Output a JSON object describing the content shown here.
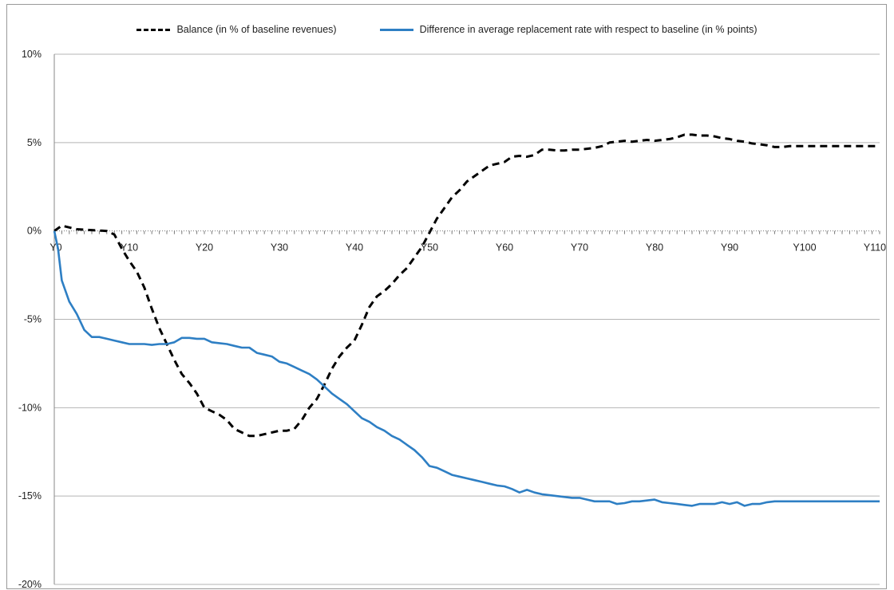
{
  "chart_data": {
    "type": "line",
    "title": "",
    "xlabel": "",
    "ylabel": "",
    "ylim": [
      -20,
      10
    ],
    "xlim": [
      0,
      110
    ],
    "yticks": [
      "10%",
      "5%",
      "0%",
      "-5%",
      "-10%",
      "-15%",
      "-20%"
    ],
    "ytick_values": [
      10,
      5,
      0,
      -5,
      -10,
      -15,
      -20
    ],
    "xticks": [
      "Y0",
      "Y10",
      "Y20",
      "Y30",
      "Y40",
      "Y50",
      "Y60",
      "Y70",
      "Y80",
      "Y90",
      "Y100",
      "Y110"
    ],
    "xtick_values": [
      0,
      10,
      20,
      30,
      40,
      50,
      60,
      70,
      80,
      90,
      100,
      110
    ],
    "grid": true,
    "legend_position": "top",
    "series": [
      {
        "name": "Balance (in % of baseline revenues)",
        "style": "dashed",
        "color": "#000000",
        "points": [
          [
            0,
            0
          ],
          [
            1,
            0.3
          ],
          [
            3,
            0.1
          ],
          [
            5,
            0.05
          ],
          [
            7,
            0.0
          ],
          [
            8,
            -0.2
          ],
          [
            9,
            -1.0
          ],
          [
            10,
            -1.7
          ],
          [
            11,
            -2.3
          ],
          [
            12,
            -3.2
          ],
          [
            13,
            -4.4
          ],
          [
            14,
            -5.5
          ],
          [
            15,
            -6.4
          ],
          [
            16,
            -7.3
          ],
          [
            17,
            -8.1
          ],
          [
            18,
            -8.6
          ],
          [
            19,
            -9.2
          ],
          [
            20,
            -10.0
          ],
          [
            21,
            -10.2
          ],
          [
            22,
            -10.4
          ],
          [
            23,
            -10.7
          ],
          [
            24,
            -11.2
          ],
          [
            25,
            -11.4
          ],
          [
            26,
            -11.6
          ],
          [
            27,
            -11.6
          ],
          [
            28,
            -11.5
          ],
          [
            29,
            -11.4
          ],
          [
            30,
            -11.3
          ],
          [
            31,
            -11.3
          ],
          [
            32,
            -11.2
          ],
          [
            33,
            -10.7
          ],
          [
            34,
            -10.0
          ],
          [
            35,
            -9.5
          ],
          [
            36,
            -8.7
          ],
          [
            37,
            -7.8
          ],
          [
            38,
            -7.1
          ],
          [
            39,
            -6.6
          ],
          [
            40,
            -6.2
          ],
          [
            41,
            -5.3
          ],
          [
            42,
            -4.3
          ],
          [
            43,
            -3.7
          ],
          [
            44,
            -3.4
          ],
          [
            45,
            -3.0
          ],
          [
            46,
            -2.5
          ],
          [
            47,
            -2.1
          ],
          [
            48,
            -1.5
          ],
          [
            49,
            -0.9
          ],
          [
            50,
            -0.1
          ],
          [
            51,
            0.7
          ],
          [
            52,
            1.3
          ],
          [
            53,
            1.9
          ],
          [
            54,
            2.3
          ],
          [
            55,
            2.8
          ],
          [
            56,
            3.1
          ],
          [
            57,
            3.4
          ],
          [
            58,
            3.7
          ],
          [
            59,
            3.8
          ],
          [
            60,
            3.9
          ],
          [
            61,
            4.2
          ],
          [
            62,
            4.25
          ],
          [
            63,
            4.2
          ],
          [
            64,
            4.3
          ],
          [
            65,
            4.6
          ],
          [
            66,
            4.6
          ],
          [
            67,
            4.55
          ],
          [
            68,
            4.55
          ],
          [
            69,
            4.6
          ],
          [
            70,
            4.6
          ],
          [
            71,
            4.65
          ],
          [
            72,
            4.7
          ],
          [
            73,
            4.8
          ],
          [
            74,
            5.0
          ],
          [
            75,
            5.05
          ],
          [
            76,
            5.1
          ],
          [
            77,
            5.05
          ],
          [
            78,
            5.1
          ],
          [
            79,
            5.15
          ],
          [
            80,
            5.1
          ],
          [
            81,
            5.15
          ],
          [
            82,
            5.2
          ],
          [
            83,
            5.3
          ],
          [
            84,
            5.45
          ],
          [
            85,
            5.45
          ],
          [
            86,
            5.4
          ],
          [
            87,
            5.4
          ],
          [
            88,
            5.35
          ],
          [
            89,
            5.25
          ],
          [
            90,
            5.2
          ],
          [
            91,
            5.1
          ],
          [
            92,
            5.05
          ],
          [
            93,
            4.95
          ],
          [
            94,
            4.9
          ],
          [
            95,
            4.85
          ],
          [
            96,
            4.75
          ],
          [
            97,
            4.75
          ],
          [
            98,
            4.8
          ],
          [
            99,
            4.8
          ],
          [
            100,
            4.8
          ],
          [
            102,
            4.8
          ],
          [
            104,
            4.8
          ],
          [
            106,
            4.8
          ],
          [
            108,
            4.8
          ],
          [
            110,
            4.8
          ]
        ]
      },
      {
        "name": "Difference in average replacement rate with respect to baseline (in % points)",
        "style": "solid",
        "color": "#2e7fc4",
        "points": [
          [
            0,
            0
          ],
          [
            0.5,
            -1.0
          ],
          [
            1,
            -2.8
          ],
          [
            2,
            -4.0
          ],
          [
            3,
            -4.7
          ],
          [
            4,
            -5.6
          ],
          [
            5,
            -6.0
          ],
          [
            6,
            -6.0
          ],
          [
            7,
            -6.1
          ],
          [
            8,
            -6.2
          ],
          [
            9,
            -6.3
          ],
          [
            10,
            -6.4
          ],
          [
            11,
            -6.4
          ],
          [
            12,
            -6.4
          ],
          [
            13,
            -6.45
          ],
          [
            14,
            -6.4
          ],
          [
            15,
            -6.4
          ],
          [
            16,
            -6.3
          ],
          [
            17,
            -6.05
          ],
          [
            18,
            -6.05
          ],
          [
            19,
            -6.1
          ],
          [
            20,
            -6.1
          ],
          [
            21,
            -6.3
          ],
          [
            22,
            -6.35
          ],
          [
            23,
            -6.4
          ],
          [
            24,
            -6.5
          ],
          [
            25,
            -6.6
          ],
          [
            26,
            -6.6
          ],
          [
            27,
            -6.9
          ],
          [
            28,
            -7.0
          ],
          [
            29,
            -7.1
          ],
          [
            30,
            -7.4
          ],
          [
            31,
            -7.5
          ],
          [
            32,
            -7.7
          ],
          [
            33,
            -7.9
          ],
          [
            34,
            -8.1
          ],
          [
            35,
            -8.4
          ],
          [
            36,
            -8.8
          ],
          [
            37,
            -9.2
          ],
          [
            38,
            -9.5
          ],
          [
            39,
            -9.8
          ],
          [
            40,
            -10.2
          ],
          [
            41,
            -10.6
          ],
          [
            42,
            -10.8
          ],
          [
            43,
            -11.1
          ],
          [
            44,
            -11.3
          ],
          [
            45,
            -11.6
          ],
          [
            46,
            -11.8
          ],
          [
            47,
            -12.1
          ],
          [
            48,
            -12.4
          ],
          [
            49,
            -12.8
          ],
          [
            50,
            -13.3
          ],
          [
            51,
            -13.4
          ],
          [
            52,
            -13.6
          ],
          [
            53,
            -13.8
          ],
          [
            54,
            -13.9
          ],
          [
            55,
            -14.0
          ],
          [
            56,
            -14.1
          ],
          [
            57,
            -14.2
          ],
          [
            58,
            -14.3
          ],
          [
            59,
            -14.4
          ],
          [
            60,
            -14.45
          ],
          [
            61,
            -14.6
          ],
          [
            62,
            -14.8
          ],
          [
            63,
            -14.65
          ],
          [
            64,
            -14.8
          ],
          [
            65,
            -14.9
          ],
          [
            66,
            -14.95
          ],
          [
            67,
            -15.0
          ],
          [
            68,
            -15.05
          ],
          [
            69,
            -15.1
          ],
          [
            70,
            -15.1
          ],
          [
            71,
            -15.2
          ],
          [
            72,
            -15.3
          ],
          [
            73,
            -15.3
          ],
          [
            74,
            -15.3
          ],
          [
            75,
            -15.45
          ],
          [
            76,
            -15.4
          ],
          [
            77,
            -15.3
          ],
          [
            78,
            -15.3
          ],
          [
            79,
            -15.25
          ],
          [
            80,
            -15.2
          ],
          [
            81,
            -15.35
          ],
          [
            82,
            -15.4
          ],
          [
            83,
            -15.45
          ],
          [
            84,
            -15.5
          ],
          [
            85,
            -15.55
          ],
          [
            86,
            -15.45
          ],
          [
            87,
            -15.45
          ],
          [
            88,
            -15.45
          ],
          [
            89,
            -15.35
          ],
          [
            90,
            -15.45
          ],
          [
            91,
            -15.35
          ],
          [
            92,
            -15.55
          ],
          [
            93,
            -15.45
          ],
          [
            94,
            -15.45
          ],
          [
            95,
            -15.35
          ],
          [
            96,
            -15.3
          ],
          [
            97,
            -15.3
          ],
          [
            98,
            -15.3
          ],
          [
            99,
            -15.3
          ],
          [
            100,
            -15.3
          ],
          [
            102,
            -15.3
          ],
          [
            104,
            -15.3
          ],
          [
            106,
            -15.3
          ],
          [
            108,
            -15.3
          ],
          [
            110,
            -15.3
          ]
        ]
      }
    ]
  }
}
